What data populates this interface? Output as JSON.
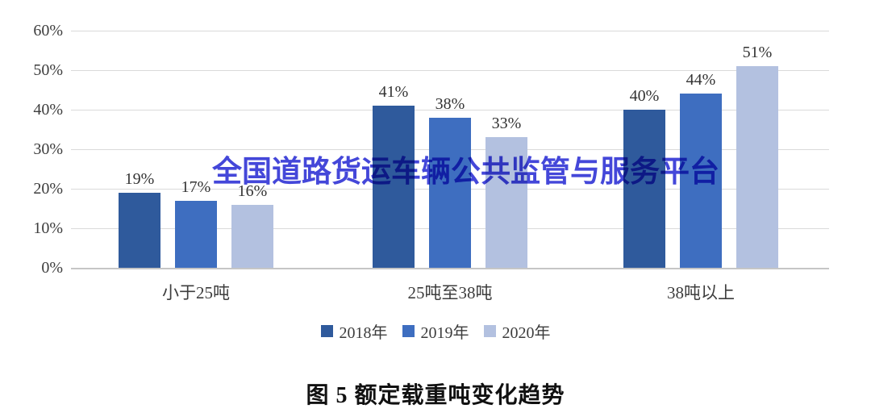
{
  "watermark": {
    "text": "全国道路货运车辆公共监管与服务平台",
    "color": "#3437d6"
  },
  "caption": "图 5  额定载重吨变化趋势",
  "chart_data": {
    "type": "bar",
    "title": "",
    "xlabel": "",
    "ylabel": "",
    "categories": [
      "小于25吨",
      "25吨至38吨",
      "38吨以上"
    ],
    "series": [
      {
        "name": "2018年",
        "color": "#2f5a9c",
        "values": [
          19,
          41,
          40
        ]
      },
      {
        "name": "2019年",
        "color": "#3e6ec0",
        "values": [
          17,
          38,
          44
        ]
      },
      {
        "name": "2020年",
        "color": "#b3c1e0",
        "values": [
          16,
          33,
          51
        ]
      }
    ],
    "value_suffix": "%",
    "ylim": [
      0,
      60
    ],
    "yticks": [
      "0%",
      "10%",
      "20%",
      "30%",
      "40%",
      "50%",
      "60%"
    ],
    "grid": true,
    "legend_position": "bottom",
    "data_labels": true
  }
}
